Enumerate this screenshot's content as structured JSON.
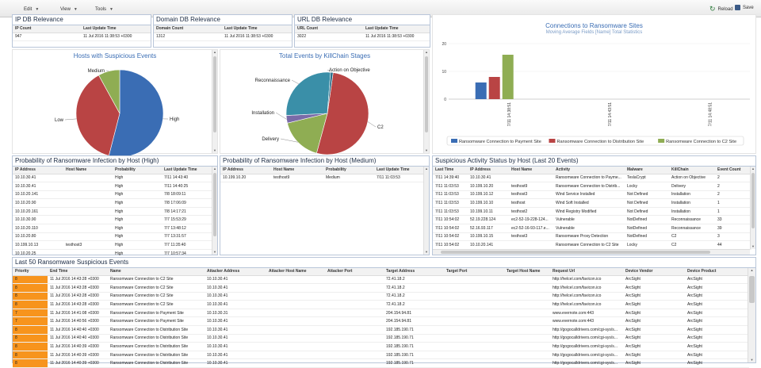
{
  "toolbar": {
    "edit": "Edit",
    "view": "View",
    "tools": "Tools",
    "reload": "Reload",
    "save": "Save"
  },
  "ip_db": {
    "title": "IP DB Relevance",
    "col_count": "IP Count",
    "col_time": "Last Update Time",
    "count": "947",
    "time": "11 Jul 2016 11:38:53 +0300"
  },
  "domain_db": {
    "title": "Domain DB Relevance",
    "col_count": "Domain Count",
    "col_time": "Last Update Time",
    "count": "1312",
    "time": "11 Jul 2016 11:38:53 +0300"
  },
  "url_db": {
    "title": "URL DB Relevance",
    "col_count": "URL Count",
    "col_time": "Last Update Time",
    "count": "3022",
    "time": "11 Jul 2016 11:38:53 +0300"
  },
  "hosts_pie": {
    "title": "Hosts with Suspicious Events",
    "colors": [
      "#3a6db4",
      "#b94444",
      "#8fad53"
    ],
    "chart_data": {
      "type": "pie",
      "title": "Hosts with Suspicious Events",
      "labels": [
        "High",
        "Low",
        "Medium"
      ],
      "values": [
        54,
        38,
        8
      ]
    }
  },
  "killchain_pie": {
    "title": "Total Events by KillChain Stages",
    "colors": [
      "#b94444",
      "#8fad53",
      "#7a6ba8",
      "#3a8fa8",
      "#2c6e8a"
    ],
    "chart_data": {
      "type": "pie",
      "title": "Total Events by KillChain Stages",
      "labels": [
        "C2",
        "Delivery",
        "Installation",
        "Reconnaissance",
        "Action on Objective"
      ],
      "values": [
        52,
        17,
        3,
        27,
        1
      ]
    }
  },
  "conn_bar": {
    "title": "Connections to Ransomware Sites",
    "subtitle": "Moving Average Fields [Name] Total Statistics",
    "colors": [
      "#3a6db4",
      "#b94444",
      "#8fad53"
    ],
    "chart_data": {
      "type": "bar",
      "title": "Connections to Ransomware Sites",
      "subtitle": "Moving Average Fields [Name] Total Statistics",
      "categories": [
        "7/11 14:38:51",
        "7/11 14:43:51",
        "7/11 14:48:51"
      ],
      "series": [
        {
          "name": "Ransomware Connection to Payment Site",
          "values": [
            6,
            0,
            0
          ]
        },
        {
          "name": "Ransomware Connection to Distribution Site",
          "values": [
            8,
            0,
            0
          ]
        },
        {
          "name": "Ransomware Connection to C2 Site",
          "values": [
            16,
            0,
            0
          ]
        }
      ],
      "yticks": [
        "0",
        "10",
        "20"
      ],
      "ylim": [
        0,
        20
      ],
      "legend": "bottom"
    }
  },
  "prob_high": {
    "title": "Probability of Ransomware Infection by Host (High)",
    "columns": [
      "IP Address",
      "Host Name",
      "Probability",
      "Last Update Time"
    ],
    "rows": [
      [
        "10.10.30.41",
        "",
        "High",
        "7/11 14:43:40"
      ],
      [
        "10.10.30.41",
        "",
        "High",
        "7/11 14:40:25"
      ],
      [
        "10.10.20.141",
        "",
        "High",
        "7/8 18:09:11"
      ],
      [
        "10.10.20.90",
        "",
        "High",
        "7/8 17:06:09"
      ],
      [
        "10.10.20.161",
        "",
        "High",
        "7/8 14:17:21"
      ],
      [
        "10.10.30.90",
        "",
        "High",
        "7/7 15:53:29"
      ],
      [
        "10.10.20.110",
        "",
        "High",
        "7/7 13:48:12"
      ],
      [
        "10.10.20.80",
        "",
        "High",
        "7/7 13:31:57"
      ],
      [
        "10.199.10.13",
        "testhost3",
        "High",
        "7/7 11:35:40"
      ],
      [
        "10.10.20.25",
        "",
        "High",
        "7/7 10:57:34"
      ]
    ]
  },
  "prob_medium": {
    "title": "Probability of Ransomware Infection by Host (Medium)",
    "columns": [
      "IP Address",
      "Host Name",
      "Probability",
      "Last Update Time"
    ],
    "rows": [
      [
        "10.199.10.20",
        "testhost9",
        "Medium",
        "7/11 11:03:53"
      ]
    ]
  },
  "suspicious": {
    "title": "Suspicious Activity Status by Host (Last 20 Events)",
    "columns": [
      "Last Time",
      "IP Address",
      "Host Name",
      "Activity",
      "Malware",
      "KillChain",
      "Event Count"
    ],
    "rows": [
      [
        "7/11 14:39:40",
        "10.10.30.41",
        "",
        "Ransomware Connection to Payme...",
        "TeslaCrypt",
        "Action on Objective",
        "2"
      ],
      [
        "7/11 11:03:53",
        "10.199.10.20",
        "testhost9",
        "Ransomware Connection to Distrib...",
        "Locky",
        "Delivery",
        "2"
      ],
      [
        "7/11 11:03:53",
        "10.199.10.12",
        "testhost3",
        "Wind Service Installed",
        "Not Defined",
        "Installation",
        "2"
      ],
      [
        "7/11 11:03:53",
        "10.199.10.10",
        "testhost",
        "Wind Soft Installed",
        "Not Defined",
        "Installation",
        "1"
      ],
      [
        "7/11 11:03:53",
        "10.199.10.11",
        "testhost2",
        "Wind Registry Modified",
        "Not Defined",
        "Installation",
        "1"
      ],
      [
        "7/11 10:54:02",
        "52.19.228.124",
        "ec2-52-19-228-124...",
        "Vulnerable",
        "NotDefined",
        "Reconnaissance",
        "33"
      ],
      [
        "7/11 10:54:02",
        "52.16.93.117",
        "ec2-52-16-93-117.e...",
        "Vulnerable",
        "NotDefined",
        "Reconnaissance",
        "39"
      ],
      [
        "7/11 10:54:02",
        "10.199.10.15",
        "testhost3",
        "Ransomware Proxy Detection",
        "NotDefined",
        "C2",
        "3"
      ],
      [
        "7/11 10:54:02",
        "10.10.20.141",
        "",
        "Ransomware Connection to C2 Site",
        "Locky",
        "C2",
        "44"
      ]
    ]
  },
  "last50": {
    "title": "Last 50 Ransomware Suspicious Events",
    "columns": [
      "Priority",
      "End Time",
      "Name",
      "Attacker Address",
      "Attacker Host Name",
      "Attacker Port",
      "Target Address",
      "Target Port",
      "Target Host Name",
      "Request Url",
      "Device Vendor",
      "Device Product"
    ],
    "rows": [
      [
        "8",
        "11 Jul 2016 14:43:28 +0300",
        "Ransomware Connection to C2 Site",
        "10.10.30.41",
        "",
        "",
        "72.41.18.2",
        "",
        "",
        "http://helcel.com/favicon.ico",
        "ArcSight",
        "ArcSight"
      ],
      [
        "8",
        "11 Jul 2016 14:43:28 +0300",
        "Ransomware Connection to C2 Site",
        "10.10.30.41",
        "",
        "",
        "72.41.18.2",
        "",
        "",
        "http://helcel.com/favicon.ico",
        "ArcSight",
        "ArcSight"
      ],
      [
        "8",
        "11 Jul 2016 14:43:28 +0300",
        "Ransomware Connection to C2 Site",
        "10.10.30.41",
        "",
        "",
        "72.41.18.2",
        "",
        "",
        "http://helcel.com/favicon.ico",
        "ArcSight",
        "ArcSight"
      ],
      [
        "8",
        "11 Jul 2016 14:43:28 +0300",
        "Ransomware Connection to C2 Site",
        "10.10.30.41",
        "",
        "",
        "72.41.18.2",
        "",
        "",
        "http://helcel.com/favicon.ico",
        "ArcSight",
        "ArcSight"
      ],
      [
        "7",
        "11 Jul 2016 14:41:08 +0300",
        "Ransomware Connection to Payment Site",
        "10.10.30.31",
        "",
        "",
        "204.154.94.81",
        "",
        "",
        "www.evernote.com:443",
        "ArcSight",
        "ArcSight"
      ],
      [
        "7",
        "11 Jul 2016 14:40:56 +0300",
        "Ransomware Connection to Payment Site",
        "10.10.30.41",
        "",
        "",
        "204.154.94.81",
        "",
        "",
        "www.evernote.com:443",
        "ArcSight",
        "ArcSight"
      ],
      [
        "8",
        "11 Jul 2016 14:40:40 +0300",
        "Ransomware Connection to Distribution Site",
        "10.10.30.41",
        "",
        "",
        "192.185.190.71",
        "",
        "",
        "http://gogocalldrivers.com/cgi-sys/s...",
        "ArcSight",
        "ArcSight"
      ],
      [
        "8",
        "11 Jul 2016 14:40:40 +0300",
        "Ransomware Connection to Distribution Site",
        "10.10.30.41",
        "",
        "",
        "192.185.190.71",
        "",
        "",
        "http://gogocalldrivers.com/cgi-sys/s...",
        "ArcSight",
        "ArcSight"
      ],
      [
        "8",
        "11 Jul 2016 14:40:39 +0300",
        "Ransomware Connection to Distribution Site",
        "10.10.30.41",
        "",
        "",
        "192.185.190.71",
        "",
        "",
        "http://gogocalldrivers.com/cgi-sys/s...",
        "ArcSight",
        "ArcSight"
      ],
      [
        "8",
        "11 Jul 2016 14:40:39 +0300",
        "Ransomware Connection to Distribution Site",
        "10.10.30.41",
        "",
        "",
        "192.185.190.71",
        "",
        "",
        "http://gogocalldrivers.com/cgi-sys/s...",
        "ArcSight",
        "ArcSight"
      ],
      [
        "8",
        "11 Jul 2016 14:40:39 +0300",
        "Ransomware Connection to Distribution Site",
        "10.10.30.41",
        "",
        "",
        "192.185.190.71",
        "",
        "",
        "http://gogocalldrivers.com/cgi-sys/s...",
        "ArcSight",
        "ArcSight"
      ]
    ]
  }
}
